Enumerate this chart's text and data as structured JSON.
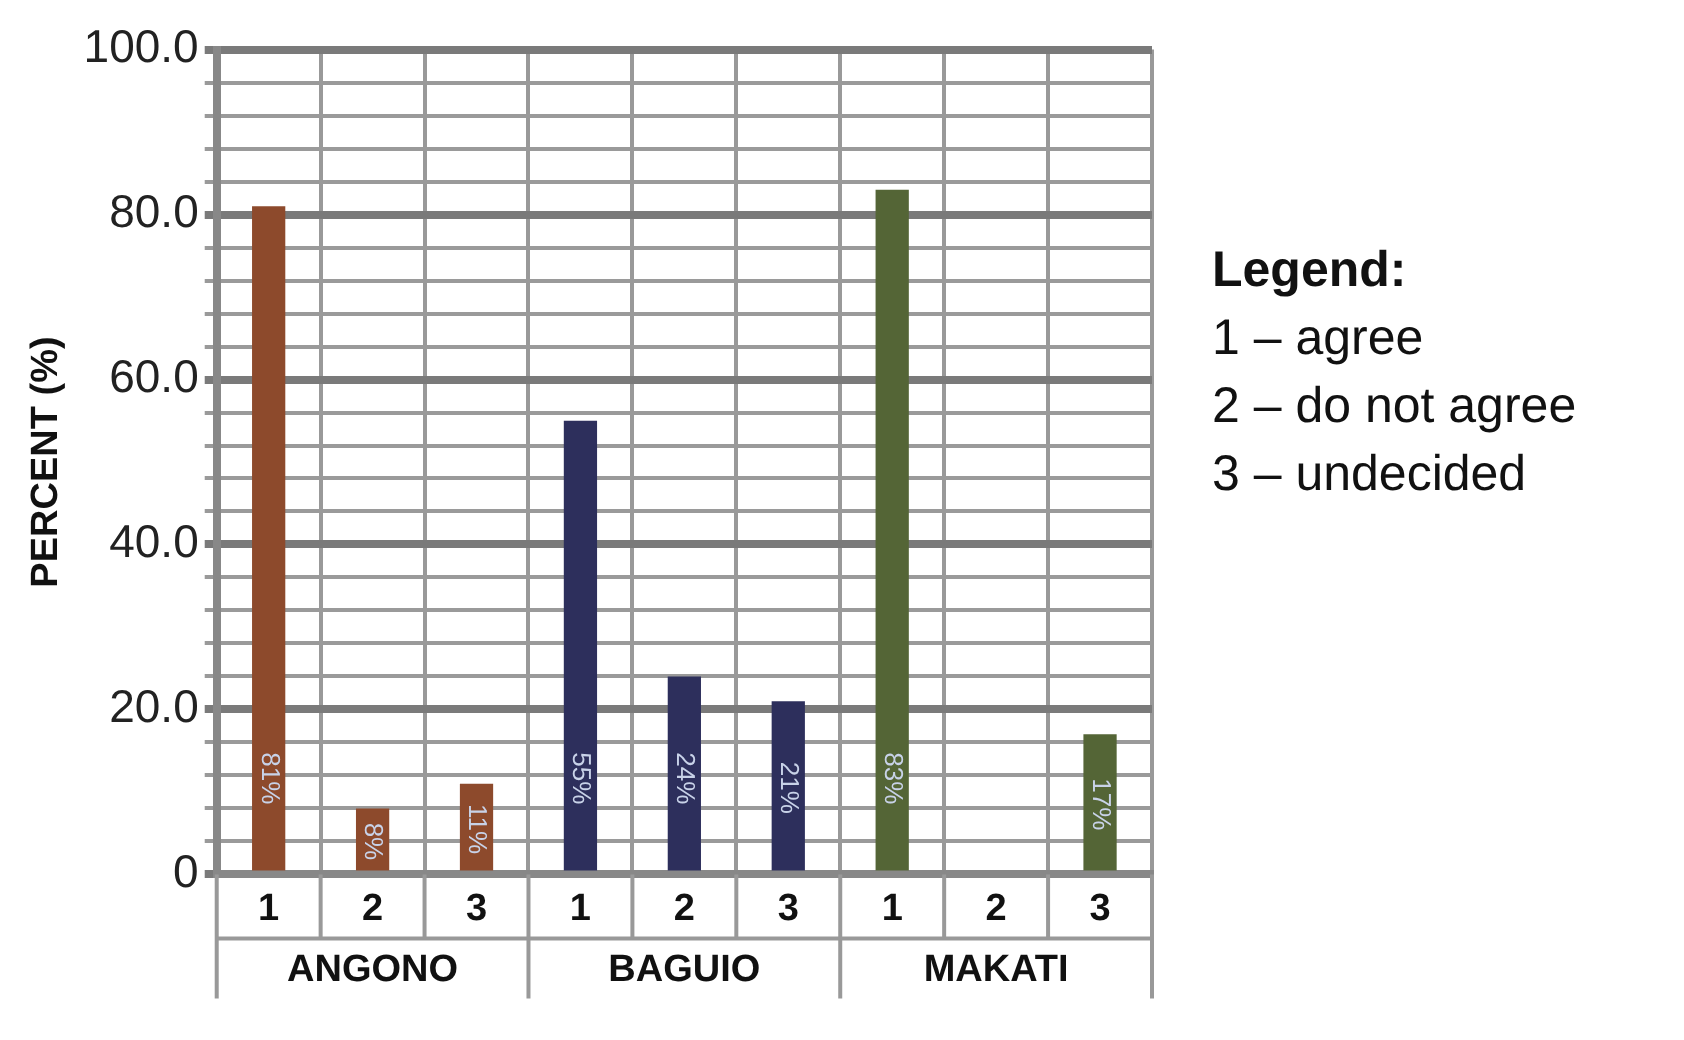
{
  "chart_data": {
    "type": "bar",
    "ylabel": "PERCENT (%)",
    "legend_title": "Legend:",
    "categories": [
      "1",
      "2",
      "3",
      "1",
      "2",
      "3",
      "1",
      "2",
      "3"
    ],
    "values": [
      81,
      8,
      11,
      55,
      24,
      21,
      83,
      null,
      17
    ],
    "colors": [
      "#8d4a2c",
      "#8d4a2c",
      "#8d4a2c",
      "#2d2f5c",
      "#2d2f5c",
      "#2d2f5c",
      "#546536",
      "#546536",
      "#546536"
    ],
    "value_labels": [
      "81%",
      "8%",
      "11%",
      "55%",
      "24%",
      "21%",
      "83%",
      null,
      "17%"
    ],
    "ylim": [
      0,
      100
    ],
    "yticks": [
      {
        "value": 0,
        "label": "0"
      },
      {
        "value": 4,
        "label": null
      },
      {
        "value": 8,
        "label": null
      },
      {
        "value": 12,
        "label": null
      },
      {
        "value": 16,
        "label": null
      },
      {
        "value": 20,
        "label": "20.0"
      },
      {
        "value": 24,
        "label": null
      },
      {
        "value": 28,
        "label": null
      },
      {
        "value": 32,
        "label": null
      },
      {
        "value": 36,
        "label": null
      },
      {
        "value": 40,
        "label": "40.0"
      },
      {
        "value": 44,
        "label": null
      },
      {
        "value": 48,
        "label": null
      },
      {
        "value": 52,
        "label": null
      },
      {
        "value": 56,
        "label": null
      },
      {
        "value": 60,
        "label": "60.0"
      },
      {
        "value": 64,
        "label": null
      },
      {
        "value": 68,
        "label": null
      },
      {
        "value": 72,
        "label": null
      },
      {
        "value": 76,
        "label": null
      },
      {
        "value": 80,
        "label": "80.0"
      },
      {
        "value": 84,
        "label": null
      },
      {
        "value": 88,
        "label": null
      },
      {
        "value": 92,
        "label": null
      },
      {
        "value": 96,
        "label": null
      },
      {
        "value": 100,
        "label": "100.0"
      }
    ],
    "grid": true,
    "annotations": [
      "ANGONO",
      "BAGUIO",
      "MAKATI",
      "1 – agree",
      "2 – do not agree",
      "3 – undecided"
    ]
  }
}
